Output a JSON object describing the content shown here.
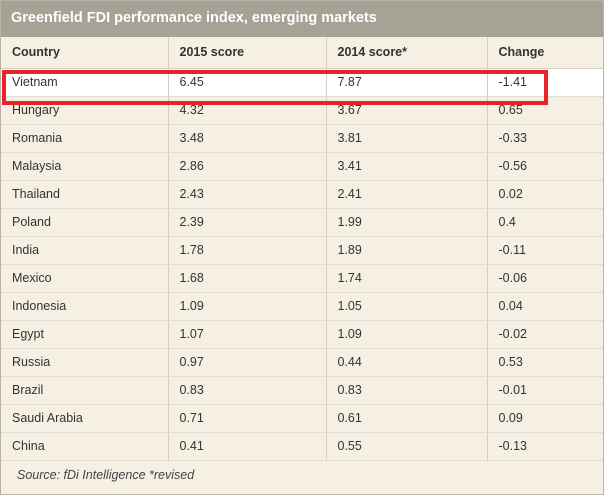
{
  "title": "Greenfield FDI performance index, emerging markets",
  "columns": [
    "Country",
    "2015 score",
    "2014 score*",
    "Change"
  ],
  "rows": [
    {
      "country": "Vietnam",
      "s2015": "6.45",
      "s2014": "7.87",
      "change": "-1.41"
    },
    {
      "country": "Hungary",
      "s2015": "4.32",
      "s2014": "3.67",
      "change": "0.65"
    },
    {
      "country": "Romania",
      "s2015": "3.48",
      "s2014": "3.81",
      "change": "-0.33"
    },
    {
      "country": "Malaysia",
      "s2015": "2.86",
      "s2014": "3.41",
      "change": "-0.56"
    },
    {
      "country": "Thailand",
      "s2015": "2.43",
      "s2014": "2.41",
      "change": "0.02"
    },
    {
      "country": "Poland",
      "s2015": "2.39",
      "s2014": "1.99",
      "change": "0.4"
    },
    {
      "country": "India",
      "s2015": "1.78",
      "s2014": "1.89",
      "change": "-0.11"
    },
    {
      "country": "Mexico",
      "s2015": "1.68",
      "s2014": "1.74",
      "change": "-0.06"
    },
    {
      "country": "Indonesia",
      "s2015": "1.09",
      "s2014": "1.05",
      "change": "0.04"
    },
    {
      "country": "Egypt",
      "s2015": "1.07",
      "s2014": "1.09",
      "change": "-0.02"
    },
    {
      "country": "Russia",
      "s2015": "0.97",
      "s2014": "0.44",
      "change": "0.53"
    },
    {
      "country": "Brazil",
      "s2015": "0.83",
      "s2014": "0.83",
      "change": "-0.01"
    },
    {
      "country": "Saudi Arabia",
      "s2015": "0.71",
      "s2014": "0.61",
      "change": "0.09"
    },
    {
      "country": "China",
      "s2015": "0.41",
      "s2014": "0.55",
      "change": "-0.13"
    }
  ],
  "source": "Source: fDi Intelligence *revised",
  "highlighted_country": "Vietnam",
  "colors": {
    "title_bar": "#a7a296",
    "background": "#f5efe4",
    "highlight_border": "#e8232a"
  }
}
